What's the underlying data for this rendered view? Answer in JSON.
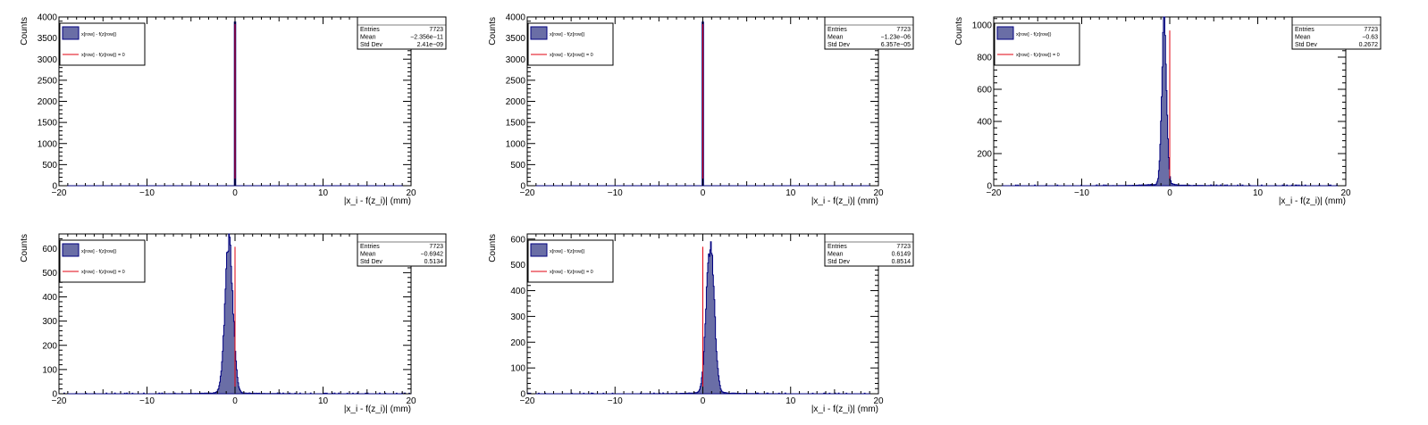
{
  "chart_data": [
    {
      "type": "histogram",
      "xlabel": "|x_i - f(z_i)| (mm)",
      "ylabel": "Counts",
      "xlim": [
        -20,
        20
      ],
      "ylim": [
        0,
        4000
      ],
      "xticks": [
        -20,
        -10,
        0,
        10,
        20
      ],
      "yticks": [
        0,
        500,
        1000,
        1500,
        2000,
        2500,
        3000,
        3500,
        4000
      ],
      "legend": {
        "placement": "top-left",
        "hist_label": "x[row] - f(z[row])",
        "line_label": "x[row] - f(z[row]) = 0"
      },
      "stats": {
        "entries_label": "Entries",
        "entries": "7723",
        "mean_label": "Mean",
        "mean": "-2.356e-11",
        "std_label": "Std Dev",
        "std": "2.41e-09"
      },
      "reference_line_x": 0,
      "peak": {
        "center": 0.0,
        "sigma": 0.05,
        "height": 3880,
        "sharp": true
      }
    },
    {
      "type": "histogram",
      "xlabel": "|x_i - f(z_i)| (mm)",
      "ylabel": "Counts",
      "xlim": [
        -20,
        20
      ],
      "ylim": [
        0,
        4000
      ],
      "xticks": [
        -20,
        -10,
        0,
        10,
        20
      ],
      "yticks": [
        0,
        500,
        1000,
        1500,
        2000,
        2500,
        3000,
        3500,
        4000
      ],
      "legend": {
        "placement": "top-left",
        "hist_label": "x[row] - f(z[row])",
        "line_label": "x[row] - f(z[row]) = 0"
      },
      "stats": {
        "entries_label": "Entries",
        "entries": "7723",
        "mean_label": "Mean",
        "mean": "-1.23e-06",
        "std_label": "Std Dev",
        "std": "6.357e-05"
      },
      "reference_line_x": 0,
      "peak": {
        "center": 0.0,
        "sigma": 0.05,
        "height": 3880,
        "sharp": true
      }
    },
    {
      "type": "histogram",
      "xlabel": "|x_i - f(z_i)| (mm)",
      "ylabel": "Counts",
      "xlim": [
        -20,
        20
      ],
      "ylim": [
        0,
        1050
      ],
      "xticks": [
        -20,
        -10,
        0,
        10,
        20
      ],
      "yticks": [
        0,
        200,
        400,
        600,
        800,
        1000
      ],
      "legend": {
        "placement": "top-left",
        "hist_label": "x[row] - f(z[row])",
        "line_label": "x[row] - f(z[row]) = 0"
      },
      "stats": {
        "entries_label": "Entries",
        "entries": "7723",
        "mean_label": "Mean",
        "mean": "-0.63",
        "std_label": "Std Dev",
        "std": "0.2672"
      },
      "reference_line_x": 0,
      "peak": {
        "center": -0.63,
        "sigma": 0.27,
        "height": 1020,
        "sharp": false
      }
    },
    {
      "type": "histogram",
      "xlabel": "|x_i - f(z_i)| (mm)",
      "ylabel": "Counts",
      "xlim": [
        -20,
        20
      ],
      "ylim": [
        0,
        660
      ],
      "xticks": [
        -20,
        -10,
        0,
        10,
        20
      ],
      "yticks": [
        0,
        100,
        200,
        300,
        400,
        500,
        600
      ],
      "legend": {
        "placement": "top-left",
        "hist_label": "x[row] - f(z[row])",
        "line_label": "x[row] - f(z[row]) = 0"
      },
      "stats": {
        "entries_label": "Entries",
        "entries": "7723",
        "mean_label": "Mean",
        "mean": "-0.6942",
        "std_label": "Std Dev",
        "std": "0.5134"
      },
      "reference_line_x": 0,
      "peak": {
        "center": -0.69,
        "sigma": 0.45,
        "height": 625,
        "sharp": false
      }
    },
    {
      "type": "histogram",
      "xlabel": "|x_i - f(z_i)| (mm)",
      "ylabel": "Counts",
      "xlim": [
        -20,
        20
      ],
      "ylim": [
        0,
        620
      ],
      "xticks": [
        -20,
        -10,
        0,
        10,
        20
      ],
      "yticks": [
        0,
        100,
        200,
        300,
        400,
        500,
        600
      ],
      "legend": {
        "placement": "top-left",
        "hist_label": "x[row] - f(z[row])",
        "line_label": "x[row] - f(z[row]) = 0"
      },
      "stats": {
        "entries_label": "Entries",
        "entries": "7723",
        "mean_label": "Mean",
        "mean": "0.6149",
        "std_label": "Std Dev",
        "std": "0.8514"
      },
      "reference_line_x": 0,
      "peak": {
        "center": 0.85,
        "sigma": 0.45,
        "height": 580,
        "sharp": false
      }
    }
  ],
  "colors": {
    "fill": "#6a6ea6",
    "edge": "#00007f",
    "line": "#e0000f",
    "axis": "#000000",
    "text": "#000000"
  }
}
